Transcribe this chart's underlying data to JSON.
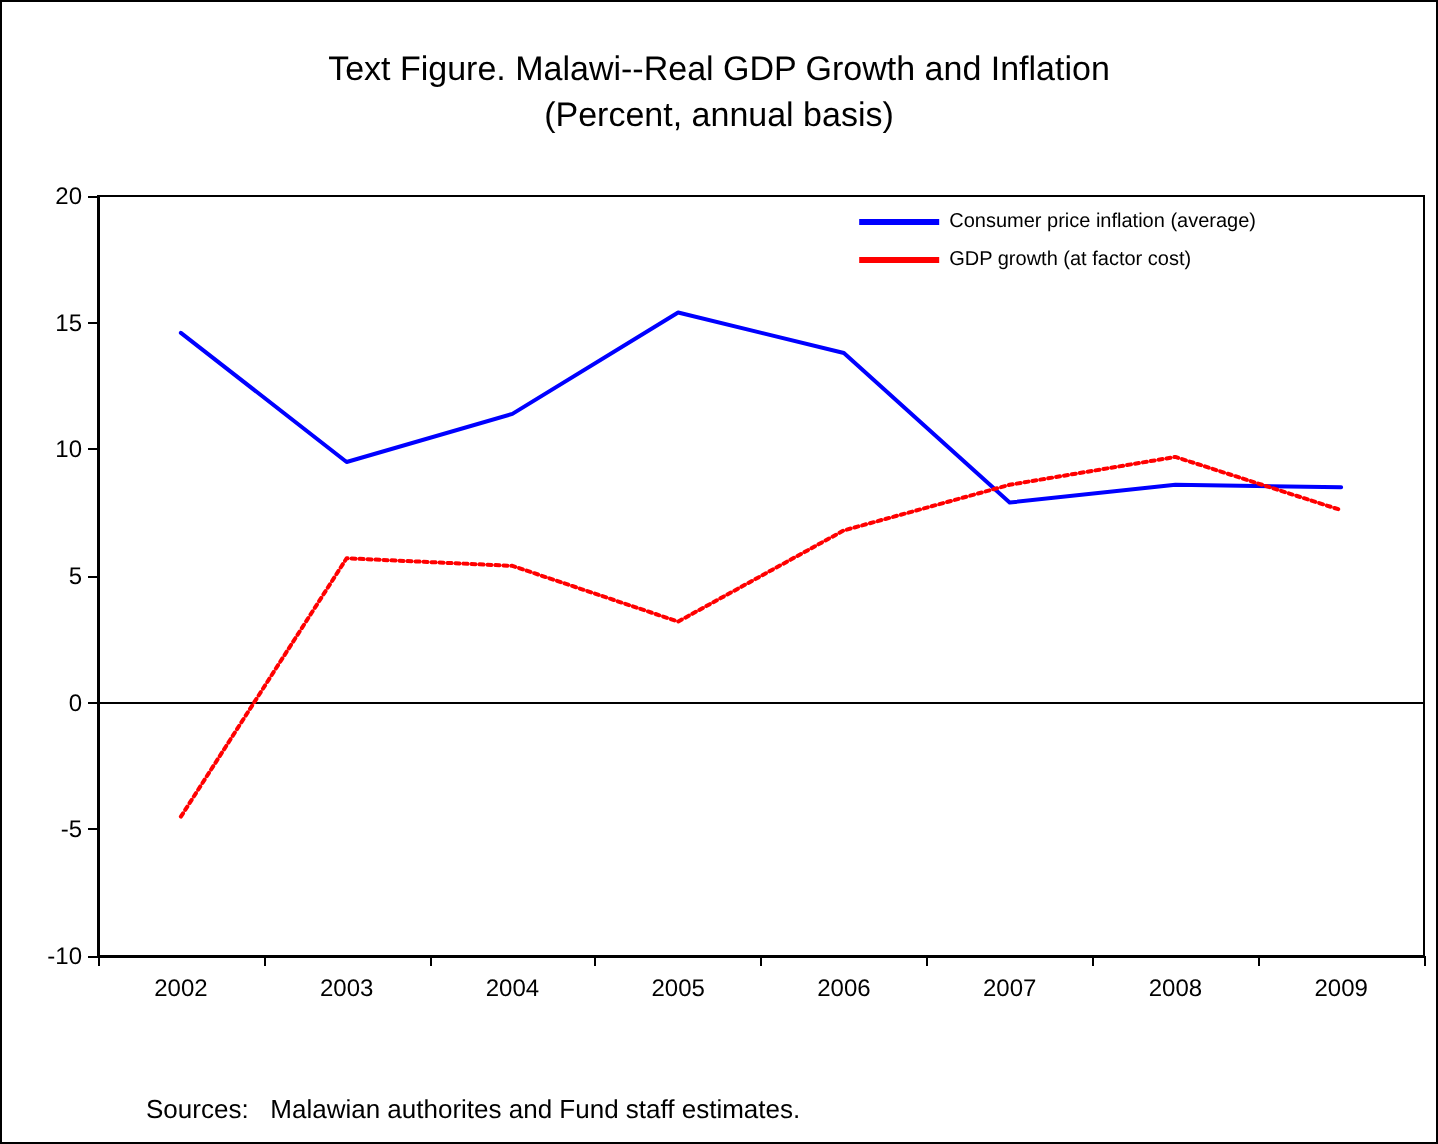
{
  "chart_data": {
    "type": "line",
    "title": "Text Figure. Malawi--Real GDP Growth and Inflation",
    "subtitle": "(Percent, annual basis)",
    "categories": [
      "2002",
      "2003",
      "2004",
      "2005",
      "2006",
      "2007",
      "2008",
      "2009"
    ],
    "series": [
      {
        "name": "Consumer price inflation (average)",
        "color": "#0000ff",
        "line_style": "solid",
        "values": [
          14.6,
          9.5,
          11.4,
          15.4,
          13.8,
          7.9,
          8.6,
          8.5
        ]
      },
      {
        "name": "GDP growth (at factor cost)",
        "color": "#ff0000",
        "line_style": "dotted",
        "values": [
          -4.5,
          5.7,
          5.4,
          3.2,
          6.8,
          8.6,
          9.7,
          7.6
        ]
      }
    ],
    "ylim": [
      -10,
      20
    ],
    "yticks": [
      -10,
      -5,
      0,
      5,
      10,
      15,
      20
    ],
    "legend": "top right",
    "marker": "none",
    "annotations": [
      "Sources:   Malawian authorites and Fund staff estimates."
    ]
  }
}
